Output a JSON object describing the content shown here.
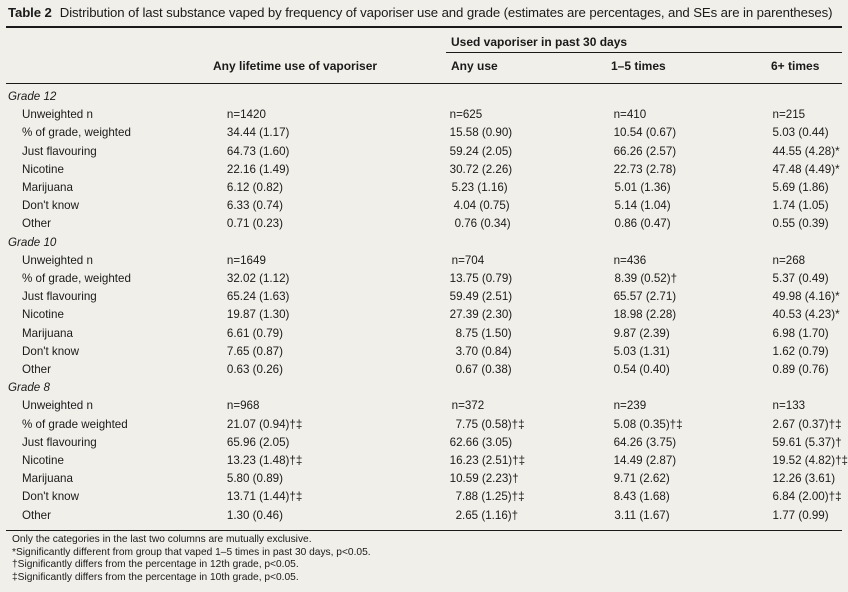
{
  "caption": {
    "label": "Table 2",
    "text": "Distribution of last substance vaped by frequency of vaporiser use and grade (estimates are percentages, and SEs are in parentheses)"
  },
  "headers": {
    "used_30": "Used vaporiser in past 30 days",
    "lifetime": "Any lifetime use of vaporiser",
    "any_use": "Any use",
    "times_1_5": "1–5 times",
    "times_6plus": "6+ times"
  },
  "groups": [
    {
      "name": "Grade 12",
      "rows": [
        {
          "label": "Unweighted n",
          "lifetime": "n=1420",
          "any": "n=625",
          "t15": "n=410",
          "t6": "n=215"
        },
        {
          "label": "% of grade, weighted",
          "lifetime": "34.44 (1.17)",
          "any": "15.58 (0.90)",
          "t15": "10.54 (0.67)",
          "t6": "5.03 (0.44)"
        },
        {
          "label": "Just flavouring",
          "lifetime": "64.73 (1.60)",
          "any": "59.24 (2.05)",
          "t15": "66.26 (2.57)",
          "t6": "44.55 (4.28)*"
        },
        {
          "label": "Nicotine",
          "lifetime": "22.16 (1.49)",
          "any": "30.72 (2.26)",
          "t15": "22.73 (2.78)",
          "t6": "47.48 (4.49)*"
        },
        {
          "label": "Marijuana",
          "lifetime": "6.12 (0.82)",
          "any": "5.23 (1.16)",
          "t15": "5.01 (1.36)",
          "t6": "5.69 (1.86)"
        },
        {
          "label": "Don't know",
          "lifetime": "6.33 (0.74)",
          "any": "4.04 (0.75)",
          "t15": "5.14 (1.04)",
          "t6": "1.74 (1.05)"
        },
        {
          "label": "Other",
          "lifetime": "0.71 (0.23)",
          "any": "0.76 (0.34)",
          "t15": "0.86 (0.47)",
          "t6": "0.55 (0.39)"
        }
      ]
    },
    {
      "name": "Grade 10",
      "rows": [
        {
          "label": "Unweighted n",
          "lifetime": "n=1649",
          "any": "n=704",
          "t15": "n=436",
          "t6": "n=268"
        },
        {
          "label": "% of grade, weighted",
          "lifetime": "32.02 (1.12)",
          "any": "13.75 (0.79)",
          "t15": "8.39 (0.52)†",
          "t6": "5.37 (0.49)"
        },
        {
          "label": "Just flavouring",
          "lifetime": "65.24 (1.63)",
          "any": "59.49 (2.51)",
          "t15": "65.57 (2.71)",
          "t6": "49.98 (4.16)*"
        },
        {
          "label": "Nicotine",
          "lifetime": "19.87 (1.30)",
          "any": "27.39 (2.30)",
          "t15": "18.98 (2.28)",
          "t6": "40.53 (4.23)*"
        },
        {
          "label": "Marijuana",
          "lifetime": "6.61 (0.79)",
          "any": "8.75 (1.50)",
          "t15": "9.87 (2.39)",
          "t6": "6.98 (1.70)"
        },
        {
          "label": "Don't know",
          "lifetime": "7.65 (0.87)",
          "any": "3.70 (0.84)",
          "t15": "5.03 (1.31)",
          "t6": "1.62 (0.79)"
        },
        {
          "label": "Other",
          "lifetime": "0.63 (0.26)",
          "any": "0.67 (0.38)",
          "t15": "0.54 (0.40)",
          "t6": "0.89 (0.76)"
        }
      ]
    },
    {
      "name": "Grade 8",
      "rows": [
        {
          "label": "Unweighted n",
          "lifetime": "n=968",
          "any": "n=372",
          "t15": "n=239",
          "t6": "n=133"
        },
        {
          "label": "% of grade weighted",
          "lifetime": "21.07 (0.94)†‡",
          "any": "7.75 (0.58)†‡",
          "t15": "5.08 (0.35)†‡",
          "t6": "2.67 (0.37)†‡"
        },
        {
          "label": "Just flavouring",
          "lifetime": "65.96 (2.05)",
          "any": "62.66 (3.05)",
          "t15": "64.26 (3.75)",
          "t6": "59.61 (5.37)†"
        },
        {
          "label": "Nicotine",
          "lifetime": "13.23 (1.48)†‡",
          "any": "16.23 (2.51)†‡",
          "t15": "14.49 (2.87)",
          "t6": "19.52 (4.82)†‡"
        },
        {
          "label": "Marijuana",
          "lifetime": "5.80 (0.89)",
          "any": "10.59 (2.23)†",
          "t15": "9.71 (2.62)",
          "t6": "12.26 (3.61)"
        },
        {
          "label": "Don't know",
          "lifetime": "13.71 (1.44)†‡",
          "any": "7.88 (1.25)†‡",
          "t15": "8.43 (1.68)",
          "t6": "6.84 (2.00)†‡"
        },
        {
          "label": "Other",
          "lifetime": "1.30 (0.46)",
          "any": "2.65 (1.16)†",
          "t15": "3.11 (1.67)",
          "t6": "1.77 (0.99)"
        }
      ]
    }
  ],
  "notes": [
    "Only the categories in the last two columns are mutually exclusive.",
    "*Significantly different from group that vaped 1–5 times in past 30 days, p<0.05.",
    "†Significantly differs from the percentage in 12th grade, p<0.05.",
    "‡Significantly differs from the percentage in 10th grade, p<0.05."
  ]
}
